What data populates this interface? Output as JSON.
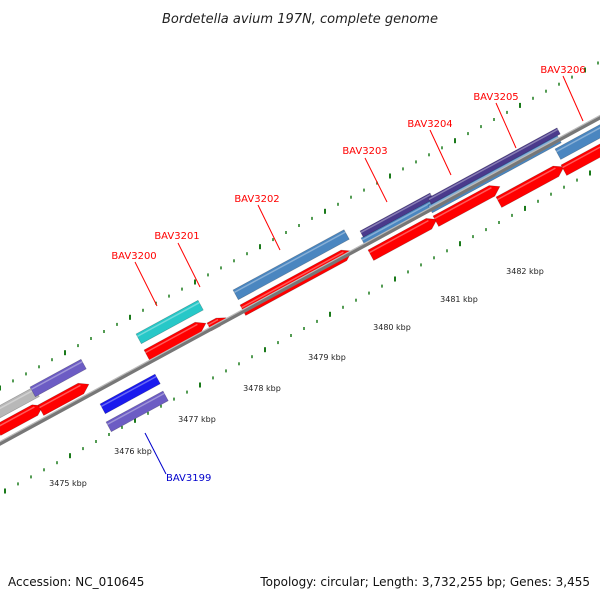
{
  "title": "Bordetella avium 197N, complete genome",
  "footer": {
    "accession": "Accession: NC_010645",
    "summary": "Topology: circular; Length: 3,732,255 bp; Genes: 3,455"
  },
  "colors": {
    "forward_label": "#ff0000",
    "reverse_label": "#0000cc",
    "cds_red": "#ff0000",
    "steel_blue": "#4a86c0",
    "dark_purple": "#4a3a8c",
    "medium_purple": "#6c5cc4",
    "cyan": "#27c8c8",
    "blue": "#1a1aee",
    "grey": "#b8b8b8",
    "backbone": "#777777",
    "tick_green": "#1a7a1a"
  },
  "kbp_ticks": [
    "3475 kbp",
    "3476 kbp",
    "3477 kbp",
    "3478 kbp",
    "3479 kbp",
    "3480 kbp",
    "3481 kbp",
    "3482 kbp"
  ],
  "gene_labels": [
    {
      "text": "BAV3199",
      "strand": "reverse"
    },
    {
      "text": "BAV3200",
      "strand": "forward"
    },
    {
      "text": "BAV3201",
      "strand": "forward"
    },
    {
      "text": "BAV3202",
      "strand": "forward"
    },
    {
      "text": "BAV3203",
      "strand": "forward"
    },
    {
      "text": "BAV3204",
      "strand": "forward"
    },
    {
      "text": "BAV3205",
      "strand": "forward"
    },
    {
      "text": "BAV3206",
      "strand": "forward"
    }
  ]
}
